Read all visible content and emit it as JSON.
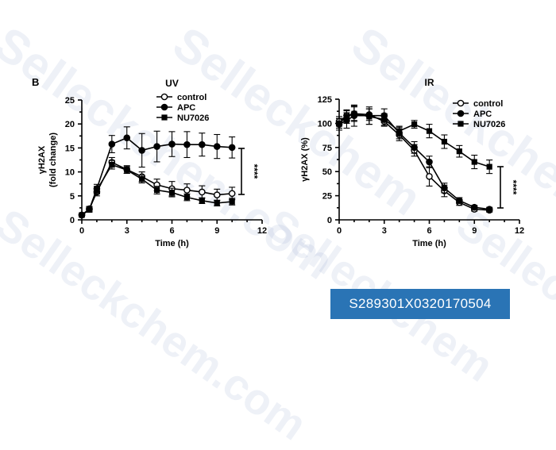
{
  "panel_label": "B",
  "badge": {
    "text": "S289301X0320170504"
  },
  "watermark": {
    "text": "Selleckchem",
    "suffix": ".com",
    "color": "#b7c6da"
  },
  "chart_data": [
    {
      "type": "line",
      "title": "UV",
      "xlabel": "Time (h)",
      "ylabel_line1": "γH2AX",
      "ylabel_line2": "(fold change)",
      "xlim": [
        0,
        12
      ],
      "ylim": [
        0,
        25
      ],
      "xticks": [
        0,
        3,
        6,
        9,
        12
      ],
      "yticks": [
        0,
        5,
        10,
        15,
        20,
        25
      ],
      "grid": false,
      "legend_position": "top-right",
      "significance": "****",
      "series": [
        {
          "name": "control",
          "marker": "open-circle",
          "x": [
            0,
            0.5,
            1,
            2,
            3,
            4,
            5,
            6,
            7,
            8,
            9,
            10
          ],
          "y": [
            1,
            2.3,
            5.8,
            12,
            10.5,
            9,
            7.3,
            6.5,
            6.2,
            5.8,
            5.2,
            5.5
          ],
          "err": [
            0.3,
            0.5,
            0.8,
            1,
            0.8,
            1,
            1.2,
            1.5,
            1.3,
            1.3,
            1.2,
            1.3
          ]
        },
        {
          "name": "APC",
          "marker": "filled-circle",
          "x": [
            0,
            0.5,
            1,
            2,
            3,
            4,
            5,
            6,
            7,
            8,
            9,
            10
          ],
          "y": [
            1,
            2.2,
            6.5,
            15.8,
            17.1,
            14.5,
            15.3,
            15.8,
            15.7,
            15.7,
            15.3,
            15.1
          ],
          "err": [
            0.3,
            0.5,
            0.9,
            1.8,
            2.3,
            3.5,
            3.2,
            2.6,
            2.7,
            2.4,
            2.5,
            2.2
          ]
        },
        {
          "name": "NU7026",
          "marker": "filled-square",
          "x": [
            0,
            0.5,
            1,
            2,
            3,
            4,
            5,
            6,
            7,
            8,
            9,
            10
          ],
          "y": [
            1,
            2.1,
            6.2,
            11.5,
            10.4,
            8.5,
            6.2,
            5.7,
            4.7,
            4,
            3.5,
            3.8
          ],
          "err": [
            0.3,
            0.5,
            0.8,
            0.9,
            0.7,
            0.8,
            0.8,
            0.9,
            0.7,
            0.6,
            0.6,
            0.7
          ]
        }
      ]
    },
    {
      "type": "line",
      "title": "IR",
      "xlabel": "Time (h)",
      "ylabel": "γH2AX (%)",
      "xlim": [
        0,
        12
      ],
      "ylim": [
        0,
        125
      ],
      "xticks": [
        0,
        3,
        6,
        9,
        12
      ],
      "yticks": [
        0,
        25,
        50,
        75,
        100,
        125
      ],
      "grid": false,
      "legend_position": "top-right",
      "significance": "****",
      "series": [
        {
          "name": "control",
          "marker": "open-circle",
          "x": [
            0,
            0.5,
            1,
            2,
            3,
            4,
            5,
            6,
            7,
            8,
            9,
            10
          ],
          "y": [
            102,
            108,
            110,
            109,
            102,
            88,
            72,
            45,
            30,
            18,
            11,
            10
          ],
          "err": [
            5,
            5,
            7,
            6,
            5,
            6,
            6,
            10,
            6,
            3,
            2,
            2
          ]
        },
        {
          "name": "APC",
          "marker": "filled-circle",
          "x": [
            0,
            0.5,
            1,
            2,
            3,
            4,
            5,
            6,
            7,
            8,
            9,
            10
          ],
          "y": [
            99,
            103,
            108,
            108,
            108,
            90,
            75,
            60,
            33,
            20,
            13,
            11
          ],
          "err": [
            6,
            8,
            11,
            9,
            7,
            6,
            6,
            6,
            5,
            3,
            2,
            2
          ]
        },
        {
          "name": "NU7026",
          "marker": "filled-square",
          "x": [
            0,
            0.5,
            1,
            2,
            3,
            4,
            5,
            6,
            7,
            8,
            9,
            10
          ],
          "y": [
            100,
            107,
            110,
            107,
            104,
            92,
            99,
            92,
            81,
            71,
            60,
            55
          ],
          "err": [
            5,
            7,
            8,
            8,
            6,
            5,
            4,
            7,
            7,
            6,
            7,
            7
          ]
        }
      ]
    }
  ]
}
